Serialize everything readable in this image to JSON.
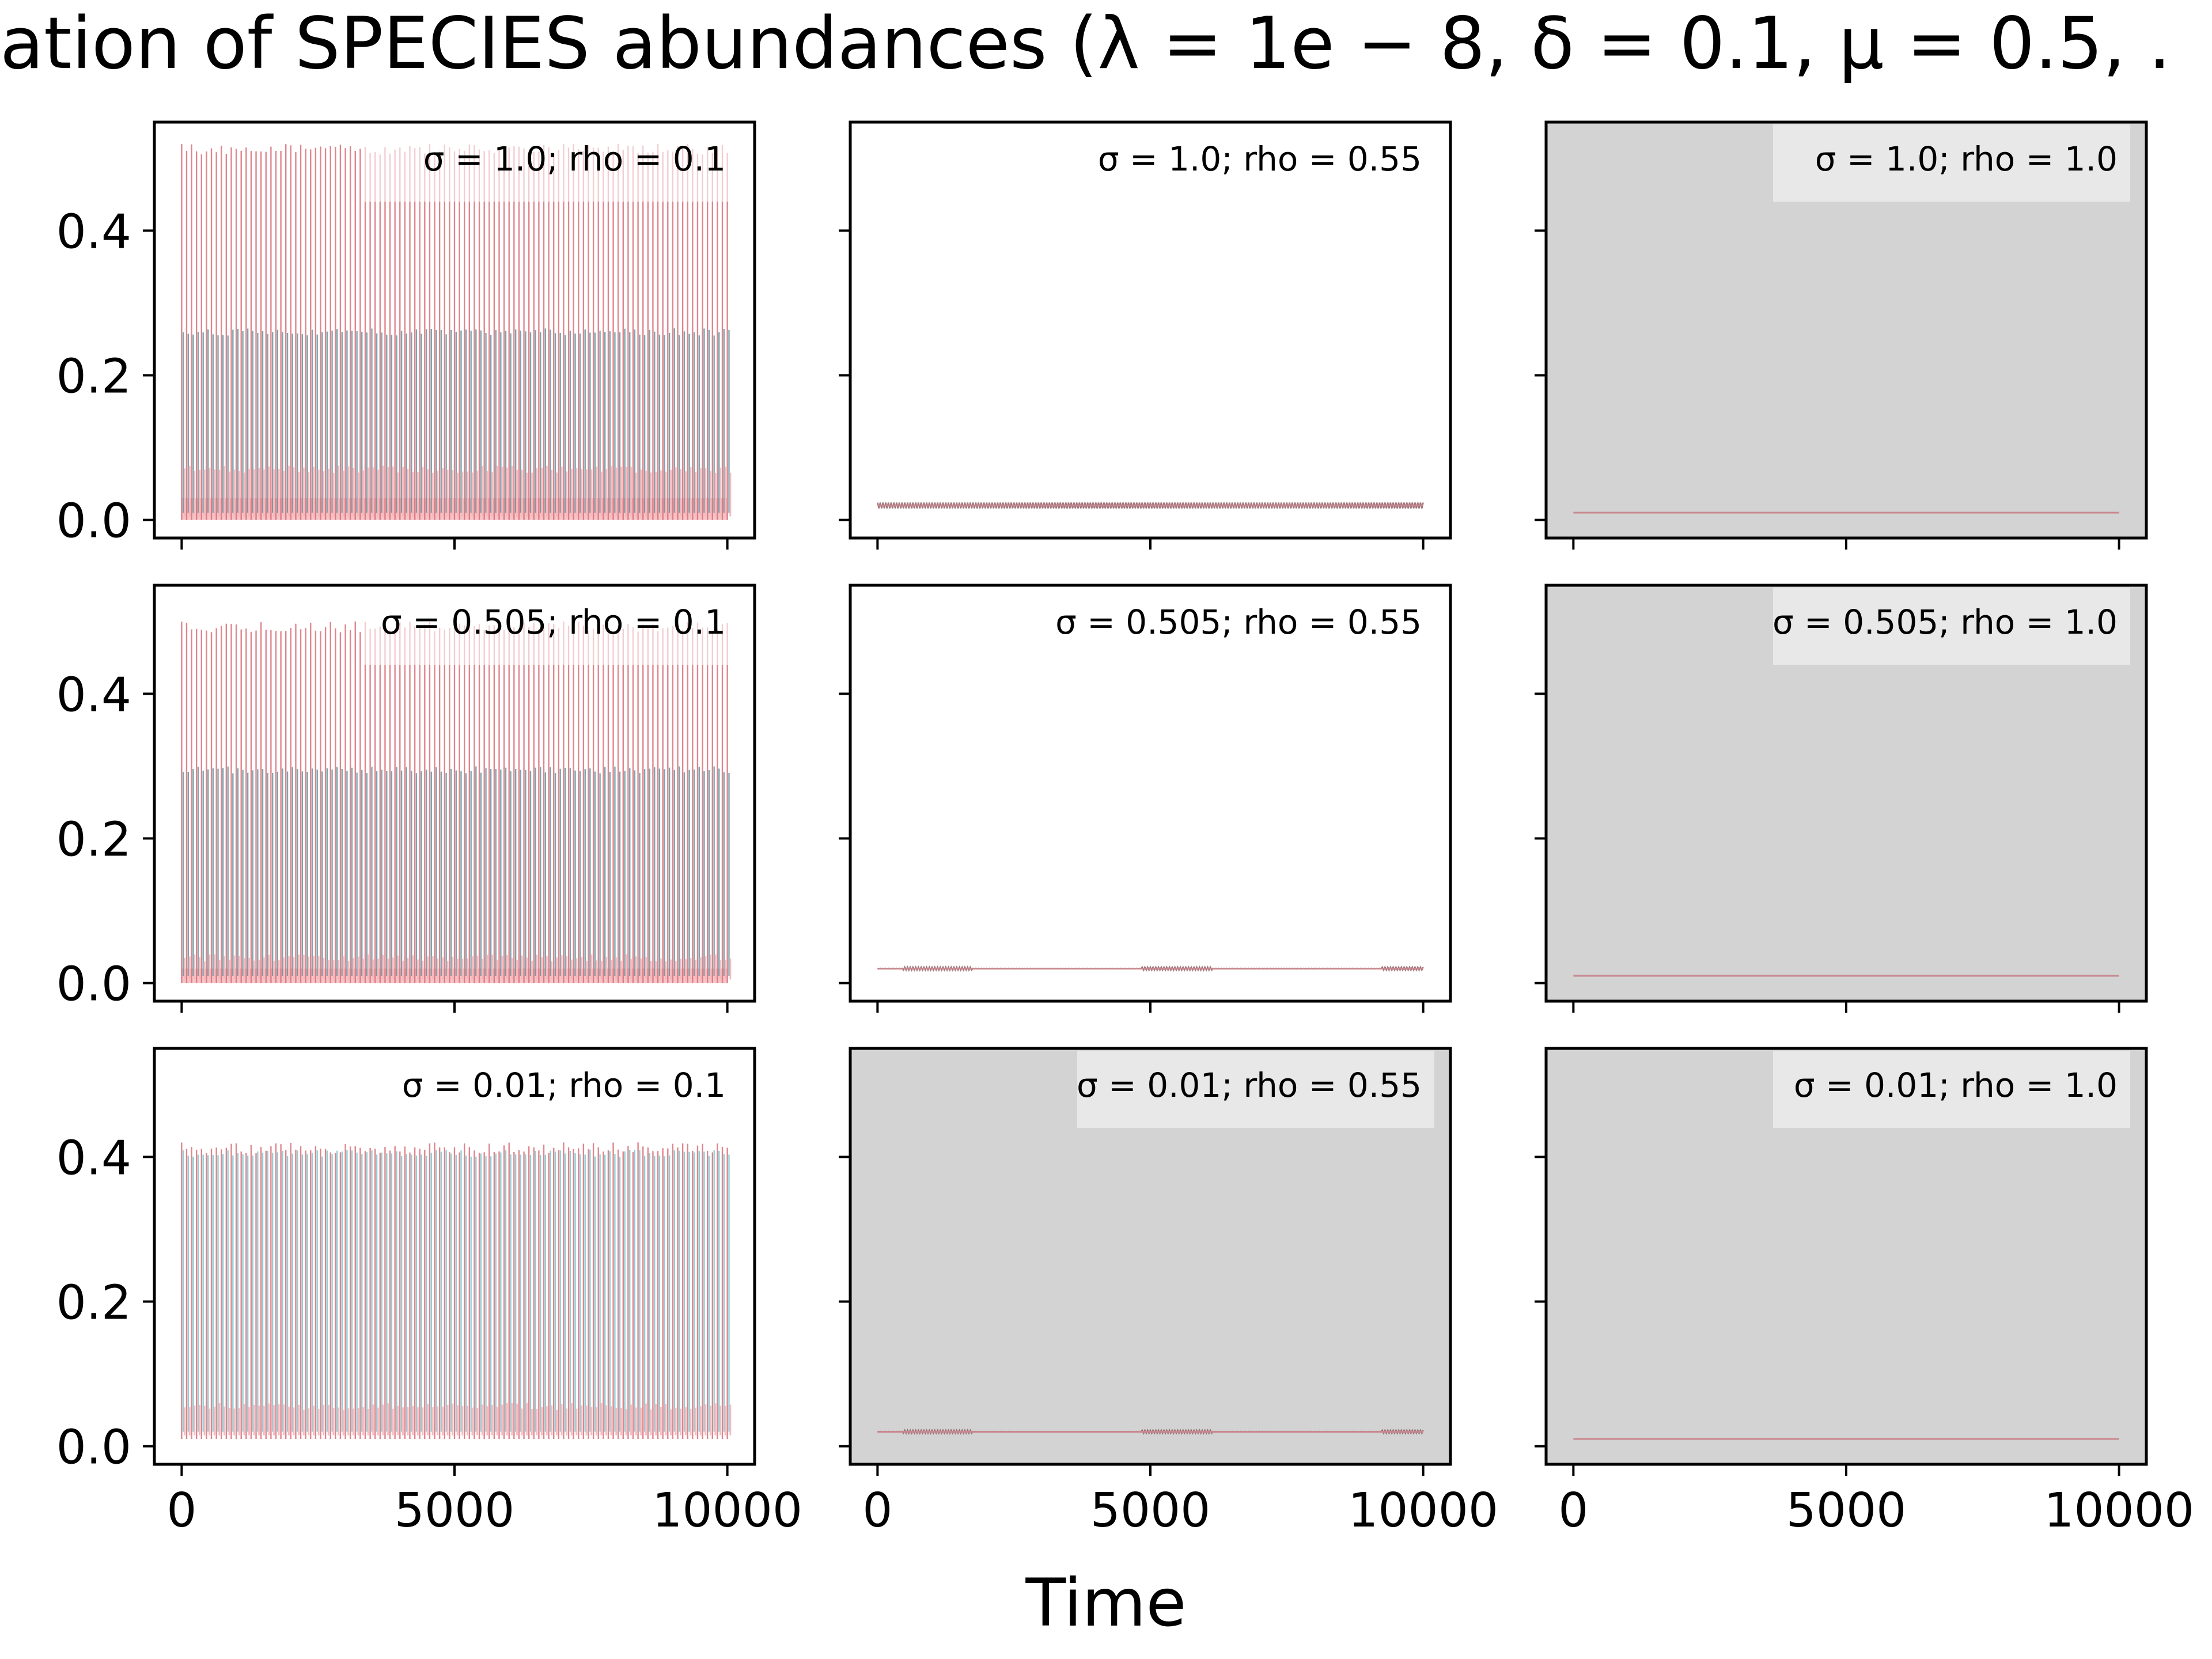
{
  "chart_data": {
    "type": "line",
    "title": "ation of SPECIES abundances (λ = 1e − 8, δ = 0.1, μ = 0.5, .",
    "xlabel": "Time",
    "ylabel": "",
    "xlim": [
      -500,
      10500
    ],
    "ylim": [
      -0.025,
      0.55
    ],
    "x_ticks": [
      "0",
      "5000",
      "10000"
    ],
    "y_ticks": [
      "0.0",
      "0.2",
      "0.4"
    ],
    "grid": false,
    "colors": {
      "series_a": "#d9717a",
      "series_b": "#5f8f9a",
      "series_c": "#f4b8bd",
      "series_d": "#78c4cc",
      "flat_line": "#c9888f",
      "dark_line": "#8f5f66",
      "shaded_bg": "#d3d3d3",
      "label_box": "#e9e9e9"
    },
    "panels": [
      {
        "label": "σ = 1.0; rho = 0.1",
        "shaded": false,
        "band_pink_top": 0.52,
        "band_teal_top": 0.265,
        "band_low": 0.065,
        "band_base": 0.03,
        "min": 0.0
      },
      {
        "label": "σ = 1.0; rho = 0.55",
        "shaded": false,
        "level": 0.02,
        "wiggle": 0.008
      },
      {
        "label": "σ = 1.0; rho = 1.0",
        "shaded": true,
        "level": 0.01
      },
      {
        "label": "σ = 0.505; rho = 0.1",
        "shaded": false,
        "band_pink_top": 0.5,
        "band_teal_top": 0.3,
        "band_low": 0.03,
        "band_base": 0.02,
        "min": 0.0
      },
      {
        "label": "σ = 0.505; rho = 0.55",
        "shaded": false,
        "level": 0.02,
        "wiggle": 0.004
      },
      {
        "label": "σ = 0.505; rho = 1.0",
        "shaded": true,
        "level": 0.01
      },
      {
        "label": "σ = 0.01; rho = 0.1",
        "shaded": false,
        "band_pink_top": 0.42,
        "band_teal_top": 0.41,
        "band_low": 0.05,
        "band_base": 0.01,
        "min": 0.01
      },
      {
        "label": "σ = 0.01; rho = 0.55",
        "shaded": true,
        "level": 0.02,
        "wiggle": 0.004
      },
      {
        "label": "σ = 0.01; rho = 1.0",
        "shaded": true,
        "level": 0.01
      }
    ]
  }
}
